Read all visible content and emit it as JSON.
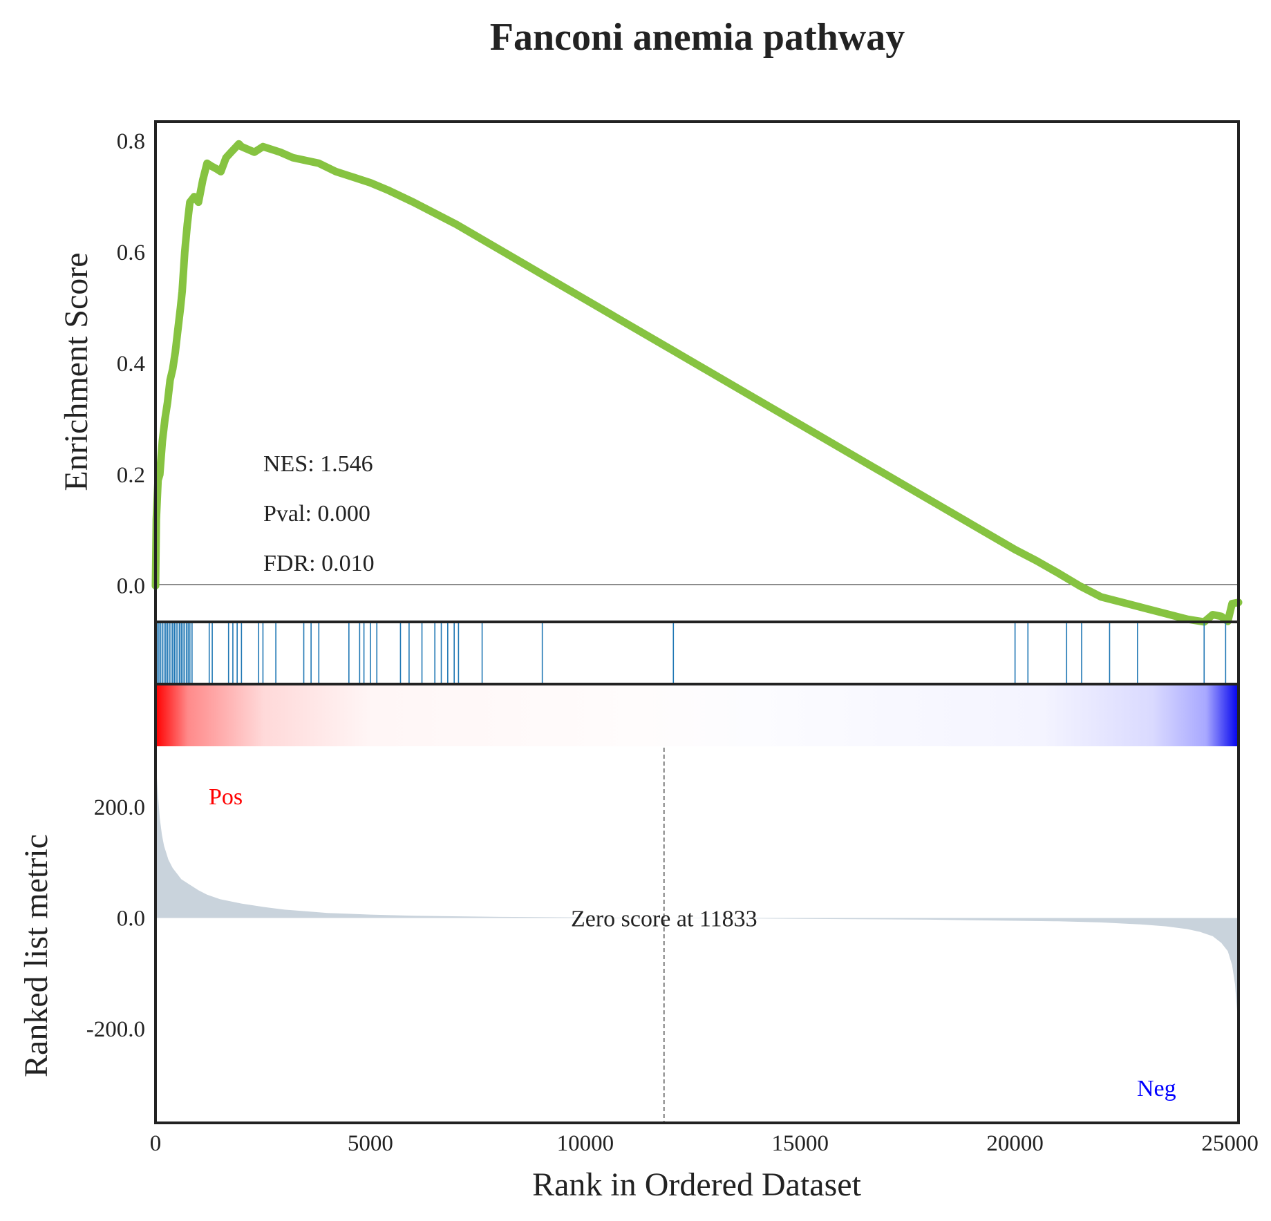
{
  "chart_data": {
    "type": "line",
    "title": "Fanconi anemia pathway",
    "xlabel": "Rank in Ordered Dataset",
    "x_ticks": [
      "0",
      "5000",
      "10000",
      "15000",
      "20000",
      "25000"
    ],
    "xlim": [
      0,
      25200
    ],
    "panels": {
      "enrichment": {
        "ylabel": "Enrichment Score",
        "y_ticks": [
          "0.0",
          "0.2",
          "0.4",
          "0.6",
          "0.8"
        ],
        "ylim": [
          -0.065,
          0.835
        ],
        "line_color": "#86c341",
        "series": [
          {
            "x": [
              0,
              20,
              60,
              100,
              160,
              220,
              280,
              340,
              400,
              460,
              520,
              580,
              620,
              680,
              740,
              800,
              900,
              1000,
              1100,
              1200,
              1300,
              1420,
              1520,
              1640,
              1760,
              1880,
              1940,
              2000,
              2150,
              2300,
              2500,
              2700,
              2900,
              3200,
              3500,
              3800,
              4200,
              4600,
              5000,
              5400,
              6000,
              7000,
              8000,
              9000,
              10000,
              11000,
              12000,
              13000,
              14000,
              15000,
              16000,
              17000,
              18000,
              19000,
              20000,
              20500,
              21000,
              21500,
              22000,
              22500,
              23000,
              23500,
              24000,
              24400,
              24600,
              24800,
              24950,
              25050,
              25200
            ],
            "y": [
              0.0,
              0.12,
              0.19,
              0.2,
              0.26,
              0.3,
              0.33,
              0.37,
              0.39,
              0.42,
              0.46,
              0.5,
              0.53,
              0.6,
              0.65,
              0.69,
              0.7,
              0.69,
              0.73,
              0.76,
              0.755,
              0.75,
              0.745,
              0.77,
              0.78,
              0.79,
              0.795,
              0.79,
              0.785,
              0.78,
              0.79,
              0.785,
              0.78,
              0.77,
              0.765,
              0.76,
              0.745,
              0.735,
              0.725,
              0.712,
              0.69,
              0.65,
              0.605,
              0.56,
              0.515,
              0.47,
              0.425,
              0.38,
              0.335,
              0.29,
              0.245,
              0.2,
              0.155,
              0.11,
              0.065,
              0.045,
              0.023,
              0.0,
              -0.02,
              -0.03,
              -0.04,
              -0.05,
              -0.06,
              -0.065,
              -0.052,
              -0.055,
              -0.064,
              -0.032,
              -0.03
            ]
          }
        ],
        "stats": {
          "nes": "NES: 1.546",
          "pval": "Pval: 0.000",
          "fdr": "FDR: 0.010"
        }
      },
      "hits": {
        "color": "#1f77b4",
        "positions": [
          40,
          80,
          120,
          160,
          200,
          240,
          280,
          320,
          360,
          400,
          440,
          480,
          520,
          560,
          600,
          640,
          680,
          720,
          760,
          800,
          850,
          1250,
          1320,
          1700,
          1800,
          1900,
          2000,
          2400,
          2500,
          2800,
          3450,
          3620,
          3800,
          4500,
          4750,
          4850,
          5000,
          5150,
          5700,
          5900,
          6200,
          6500,
          6650,
          6800,
          6950,
          7050,
          7600,
          9000,
          12050,
          20000,
          20300,
          21200,
          21550,
          22200,
          22850,
          24400,
          24900
        ]
      },
      "ranking": {
        "ylabel": "Ranked list metric",
        "y_ticks": [
          "200.0",
          "0.0",
          "-200.0"
        ],
        "ylim": [
          -370,
          310
        ],
        "fill_color": "#c9d3dc",
        "x": [
          0,
          20,
          50,
          100,
          150,
          200,
          300,
          400,
          500,
          600,
          800,
          1000,
          1200,
          1500,
          2000,
          2500,
          3000,
          3500,
          4000,
          5000,
          6000,
          8000,
          10000,
          11833,
          14000,
          16000,
          18000,
          20000,
          21000,
          22000,
          22500,
          23000,
          23500,
          24000,
          24300,
          24600,
          24800,
          24950,
          25050,
          25120,
          25170,
          25200
        ],
        "values": [
          300,
          270,
          230,
          180,
          150,
          130,
          105,
          90,
          80,
          70,
          60,
          50,
          42,
          34,
          26,
          20,
          15,
          12,
          9,
          6,
          4,
          2,
          1,
          0,
          -1,
          -2,
          -3,
          -5,
          -6,
          -8,
          -10,
          -12,
          -15,
          -20,
          -25,
          -33,
          -45,
          -60,
          -85,
          -120,
          -170,
          -230
        ],
        "zero_cross": 11833,
        "zero_label": "Zero score at 11833",
        "pos_label": "Pos",
        "neg_label": "Neg",
        "pos_color": "#ff0000",
        "neg_color": "#0000ff"
      }
    }
  }
}
